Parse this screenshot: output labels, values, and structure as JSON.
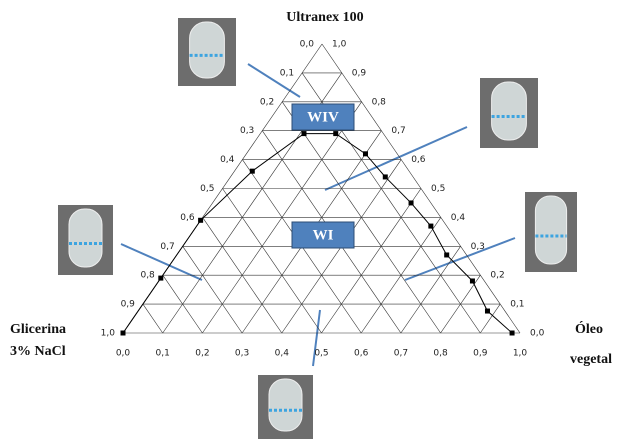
{
  "chart_data": {
    "type": "ternary",
    "vertex_labels": {
      "top": "Ultranex 100",
      "left": [
        "Glicerina",
        "3% NaCl"
      ],
      "right": [
        "Óleo",
        "vegetal"
      ]
    },
    "regions": [
      "WIV",
      "WI"
    ],
    "color": "#000000",
    "grid": true,
    "bottom_ticks": [
      {
        "value": 0,
        "label": "0,0"
      },
      {
        "value": 0.1,
        "label": "0,1"
      },
      {
        "value": 0.2,
        "label": "0,2"
      },
      {
        "value": 0.3,
        "label": "0,3"
      },
      {
        "value": 0.4,
        "label": "0,4"
      },
      {
        "value": 0.5,
        "label": "0,5"
      },
      {
        "value": 0.6,
        "label": "0,6"
      },
      {
        "value": 0.7,
        "label": "0,7"
      },
      {
        "value": 0.8,
        "label": "0,8"
      },
      {
        "value": 0.9,
        "label": "0,9"
      },
      {
        "value": 1,
        "label": "1,0"
      }
    ],
    "left_ticks": [
      {
        "value": 0,
        "label": "0,0"
      },
      {
        "value": 0.1,
        "label": "0,1"
      },
      {
        "value": 0.2,
        "label": "0,2"
      },
      {
        "value": 0.3,
        "label": "0,3"
      },
      {
        "value": 0.4,
        "label": "0,4"
      },
      {
        "value": 0.5,
        "label": "0,5"
      },
      {
        "value": 0.6,
        "label": "0,6"
      },
      {
        "value": 0.7,
        "label": "0,7"
      },
      {
        "value": 0.8,
        "label": "0,8"
      },
      {
        "value": 0.9,
        "label": "0,9"
      },
      {
        "value": 1,
        "label": "1,0"
      }
    ],
    "right_ticks": [
      {
        "value": 0,
        "label": "0,0"
      },
      {
        "value": 0.1,
        "label": "0,1"
      },
      {
        "value": 0.2,
        "label": "0,2"
      },
      {
        "value": 0.3,
        "label": "0,3"
      },
      {
        "value": 0.4,
        "label": "0,4"
      },
      {
        "value": 0.5,
        "label": "0,5"
      },
      {
        "value": 0.6,
        "label": "0,6"
      },
      {
        "value": 0.7,
        "label": "0,7"
      },
      {
        "value": 0.8,
        "label": "0,8"
      },
      {
        "value": 0.9,
        "label": "0,9"
      },
      {
        "value": 1,
        "label": "1,0"
      }
    ],
    "glicerina": [
      1.0,
      0.81,
      0.61,
      0.395,
      0.2,
      0.12,
      0.08,
      0.07,
      0.05,
      0.04,
      0.05,
      0.03,
      0.044,
      0.02
    ],
    "oleo": [
      0.0,
      0.0,
      0.0,
      0.045,
      0.11,
      0.19,
      0.3,
      0.39,
      0.5,
      0.59,
      0.68,
      0.79,
      0.88,
      0.98
    ],
    "ultranex": [
      0.0,
      0.19,
      0.39,
      0.56,
      0.69,
      0.69,
      0.62,
      0.54,
      0.45,
      0.37,
      0.27,
      0.18,
      0.076,
      0.0
    ]
  }
}
